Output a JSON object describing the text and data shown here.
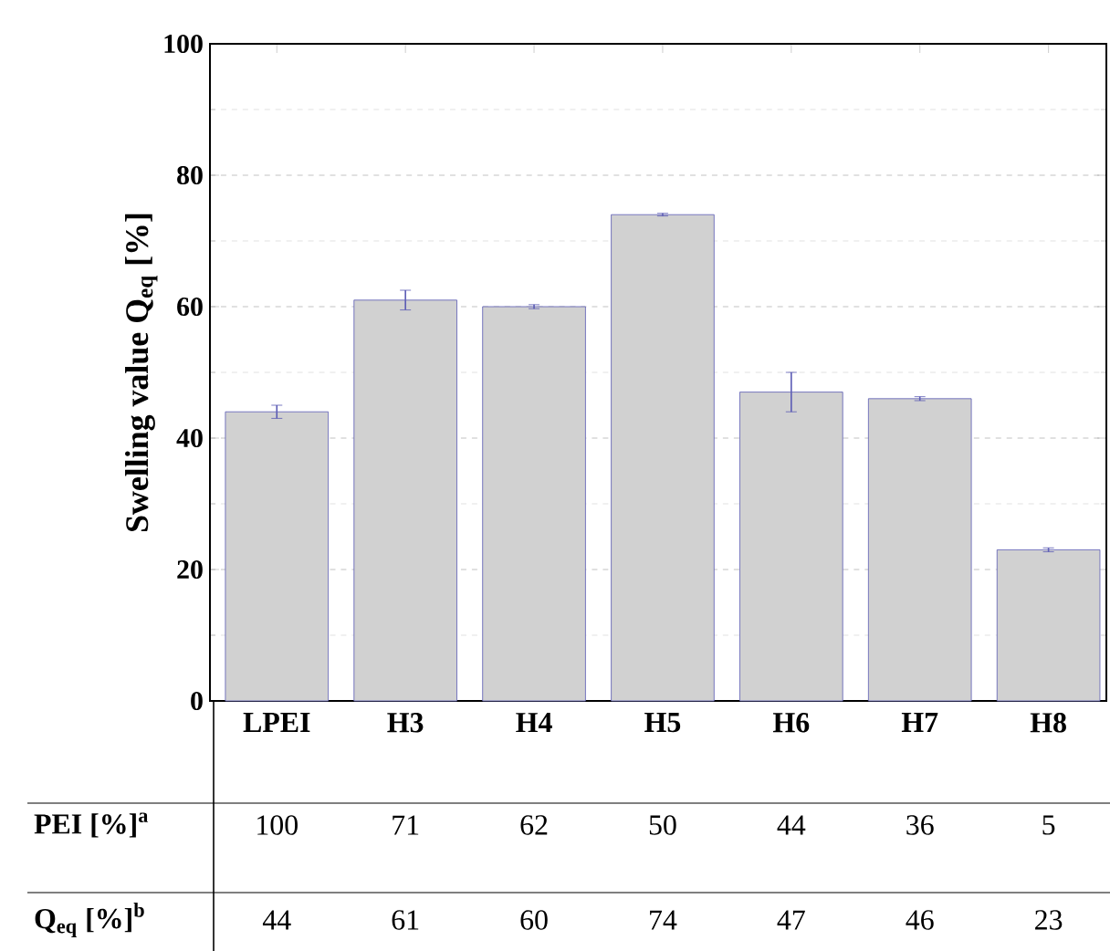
{
  "chart_data": {
    "type": "bar",
    "ylabel": "Swelling value Q$_{eq}$ [%]",
    "categories": [
      "LPEI",
      "H3",
      "H4",
      "H5",
      "H6",
      "H7",
      "H8"
    ],
    "values": [
      44,
      61,
      60,
      74,
      47,
      46,
      23
    ],
    "errors": [
      1,
      1.5,
      0.3,
      0.2,
      3,
      0.3,
      0.3
    ],
    "color": "#5a5ab4",
    "ylim": [
      0,
      100
    ],
    "yticks": [
      0,
      20,
      40,
      60,
      80,
      100
    ],
    "grid": "y",
    "data_labels": true,
    "annotations": [
      "PEI [%]$^{a}$",
      "100",
      "71",
      "62",
      "50",
      "44",
      "36",
      "5",
      "Q$_{eq}$ [%]$^{b}$"
    ]
  }
}
